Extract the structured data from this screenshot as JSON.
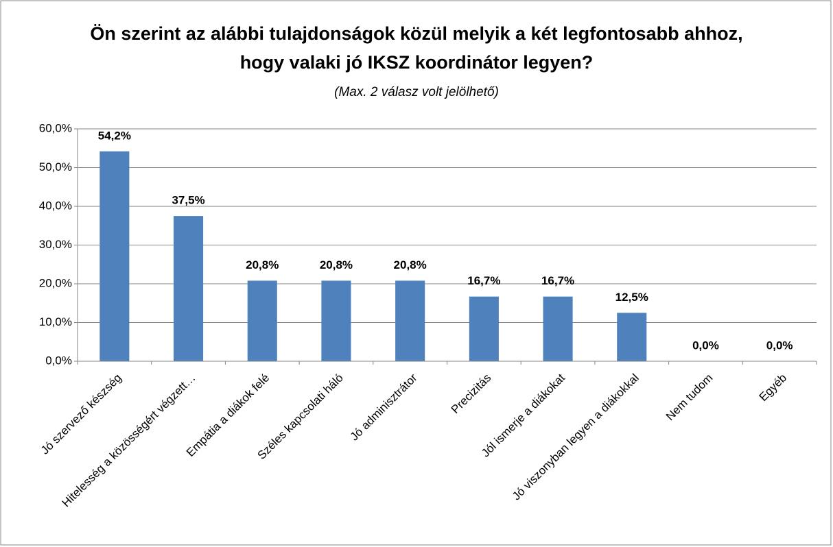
{
  "chart_data": {
    "type": "bar",
    "title": "Ön szerint az alábbi tulajdonságok közül melyik a két legfontosabb ahhoz, hogy valaki jó IKSZ koordinátor legyen?",
    "subtitle": "(Max. 2 válasz volt jelölhető)",
    "categories": [
      "Jó szervező készség",
      "Hitelesség a közösségért végzett…",
      "Empátia a diákok felé",
      "Széles kapcsolati háló",
      "Jó adminisztrátor",
      "Precizitás",
      "Jól ismerje a diákokat",
      "Jó viszonyban legyen a diákokkal",
      "Nem tudom",
      "Egyéb"
    ],
    "values": [
      54.2,
      37.5,
      20.8,
      20.8,
      20.8,
      16.7,
      16.7,
      12.5,
      0,
      0
    ],
    "value_labels": [
      "54,2%",
      "37,5%",
      "20,8%",
      "20,8%",
      "20,8%",
      "16,7%",
      "16,7%",
      "12,5%",
      "0,0%",
      "0,0%"
    ],
    "color": "#4f81bd",
    "ylim": [
      0,
      60
    ],
    "yticks": [
      {
        "value": 0,
        "label": "0,0%"
      },
      {
        "value": 10,
        "label": "10,0%"
      },
      {
        "value": 20,
        "label": "20,0%"
      },
      {
        "value": 30,
        "label": "30,0%"
      },
      {
        "value": 40,
        "label": "40,0%"
      },
      {
        "value": 50,
        "label": "50,0%"
      },
      {
        "value": 60,
        "label": "60,0%"
      }
    ],
    "grid": true
  }
}
